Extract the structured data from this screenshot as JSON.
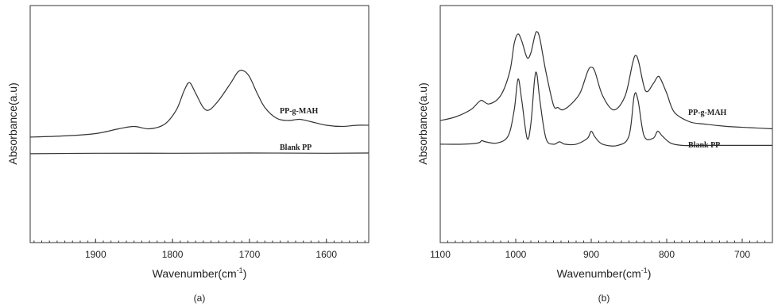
{
  "chart_data": [
    {
      "type": "line",
      "panel_label": "(a)",
      "xlabel": "Wavenumber(cm",
      "xlabel_sup": "-1",
      "xlabel_end": ")",
      "ylabel": "Absorbance(a.u)",
      "xlim": [
        1985,
        1545
      ],
      "ylim": [
        0,
        1
      ],
      "x_ticks": [
        1900,
        1800,
        1700,
        1600
      ],
      "x_tick_labels": [
        "1900",
        "1800",
        "1700",
        "1600"
      ],
      "series": [
        {
          "name": "PP-g-MAH",
          "x": [
            1985,
            1940,
            1900,
            1870,
            1850,
            1830,
            1810,
            1795,
            1785,
            1778,
            1770,
            1760,
            1752,
            1740,
            1725,
            1715,
            1708,
            1700,
            1690,
            1680,
            1665,
            1650,
            1635,
            1620,
            1600,
            1580,
            1560,
            1545
          ],
          "values": [
            0.445,
            0.45,
            0.46,
            0.48,
            0.49,
            0.48,
            0.5,
            0.56,
            0.64,
            0.675,
            0.63,
            0.57,
            0.56,
            0.6,
            0.67,
            0.72,
            0.725,
            0.7,
            0.63,
            0.57,
            0.525,
            0.515,
            0.52,
            0.51,
            0.495,
            0.49,
            0.495,
            0.495
          ]
        },
        {
          "name": "Blank PP",
          "x": [
            1985,
            1900,
            1800,
            1700,
            1600,
            1545
          ],
          "values": [
            0.375,
            0.377,
            0.377,
            0.378,
            0.377,
            0.378
          ]
        }
      ]
    },
    {
      "type": "line",
      "panel_label": "(b)",
      "xlabel": "Wavenumber(cm",
      "xlabel_sup": "-1",
      "xlabel_end": ")",
      "ylabel": "Absorbance(a.u)",
      "xlim": [
        1100,
        660
      ],
      "ylim": [
        0,
        1
      ],
      "x_ticks": [
        1100,
        1000,
        900,
        800,
        700
      ],
      "x_tick_labels": [
        "1100",
        "1000",
        "900",
        "800",
        "700"
      ],
      "series": [
        {
          "name": "PP-g-MAH",
          "x": [
            1100,
            1080,
            1060,
            1050,
            1045,
            1035,
            1020,
            1008,
            1002,
            997,
            992,
            985,
            980,
            975,
            972,
            968,
            960,
            950,
            944,
            938,
            928,
            915,
            905,
            900,
            895,
            885,
            870,
            855,
            845,
            841,
            837,
            828,
            818,
            812,
            808,
            800,
            790,
            770,
            750,
            720,
            690,
            660
          ],
          "values": [
            0.515,
            0.53,
            0.56,
            0.59,
            0.6,
            0.585,
            0.62,
            0.72,
            0.84,
            0.88,
            0.85,
            0.78,
            0.8,
            0.87,
            0.89,
            0.86,
            0.72,
            0.58,
            0.57,
            0.56,
            0.58,
            0.63,
            0.72,
            0.74,
            0.72,
            0.62,
            0.56,
            0.62,
            0.76,
            0.79,
            0.76,
            0.64,
            0.67,
            0.7,
            0.69,
            0.63,
            0.55,
            0.51,
            0.5,
            0.49,
            0.485,
            0.48
          ]
        },
        {
          "name": "Blank PP",
          "x": [
            1100,
            1070,
            1050,
            1045,
            1040,
            1025,
            1010,
            1002,
            997,
            992,
            985,
            980,
            975,
            972,
            968,
            960,
            950,
            942,
            935,
            920,
            905,
            900,
            895,
            885,
            865,
            850,
            843,
            838,
            830,
            818,
            812,
            806,
            795,
            780,
            760,
            730,
            700,
            660
          ],
          "values": [
            0.415,
            0.415,
            0.42,
            0.43,
            0.425,
            0.42,
            0.45,
            0.56,
            0.69,
            0.6,
            0.44,
            0.5,
            0.69,
            0.71,
            0.6,
            0.44,
            0.415,
            0.425,
            0.415,
            0.415,
            0.44,
            0.47,
            0.445,
            0.415,
            0.41,
            0.45,
            0.62,
            0.6,
            0.45,
            0.44,
            0.47,
            0.45,
            0.42,
            0.41,
            0.41,
            0.41,
            0.41,
            0.41
          ]
        }
      ]
    }
  ]
}
